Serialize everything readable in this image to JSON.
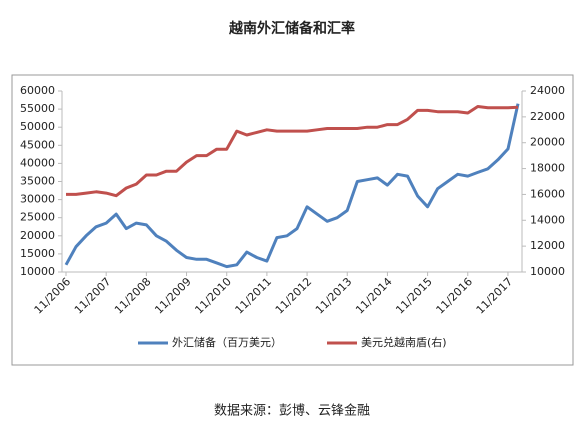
{
  "chart_data": {
    "type": "line",
    "title": "越南外汇储备和汇率",
    "source": "数据来源：彭博、云锋金融",
    "categories": [
      "11/2006",
      null,
      null,
      null,
      "11/2007",
      null,
      null,
      null,
      "11/2008",
      null,
      null,
      null,
      "11/2009",
      null,
      null,
      null,
      "11/2010",
      null,
      null,
      null,
      "11/2011",
      null,
      null,
      null,
      "11/2012",
      null,
      null,
      null,
      "11/2013",
      null,
      null,
      null,
      "11/2014",
      null,
      null,
      null,
      "11/2015",
      null,
      null,
      null,
      "11/2016",
      null,
      null,
      null,
      "11/2017",
      null
    ],
    "series": [
      {
        "name": "外汇储备（百万美元）",
        "color": "#4f81bd",
        "values": [
          12000,
          17000,
          20000,
          22500,
          23500,
          26000,
          22000,
          23500,
          23000,
          20000,
          18500,
          16000,
          14000,
          13500,
          13500,
          12500,
          11500,
          12000,
          15500,
          14000,
          13000,
          19500,
          20000,
          22000,
          28000,
          26000,
          24000,
          25000,
          27000,
          35000,
          35500,
          36000,
          34000,
          37000,
          36500,
          31000,
          28000,
          33000,
          35000,
          37000,
          36500,
          37500,
          38500,
          41000,
          44000,
          56500
        ]
      },
      {
        "name": "美元兑越南盾(右)",
        "color": "#c0504d",
        "axis": "y2",
        "values": [
          16000,
          16000,
          16100,
          16200,
          16100,
          15900,
          16500,
          16800,
          17500,
          17500,
          17800,
          17800,
          18500,
          19000,
          19000,
          19500,
          19500,
          20900,
          20600,
          20800,
          21000,
          20900,
          20900,
          20900,
          20900,
          21000,
          21100,
          21100,
          21100,
          21100,
          21200,
          21200,
          21400,
          21400,
          21800,
          22500,
          22500,
          22400,
          22400,
          22400,
          22300,
          22800,
          22700,
          22700,
          22700,
          22750
        ]
      }
    ],
    "ylim": [
      10000,
      60000
    ],
    "yticks": [
      10000,
      15000,
      20000,
      25000,
      30000,
      35000,
      40000,
      45000,
      50000,
      55000,
      60000
    ],
    "y2lim": [
      10000,
      24000
    ],
    "y2ticks": [
      10000,
      12000,
      14000,
      16000,
      18000,
      20000,
      22000,
      24000
    ]
  }
}
